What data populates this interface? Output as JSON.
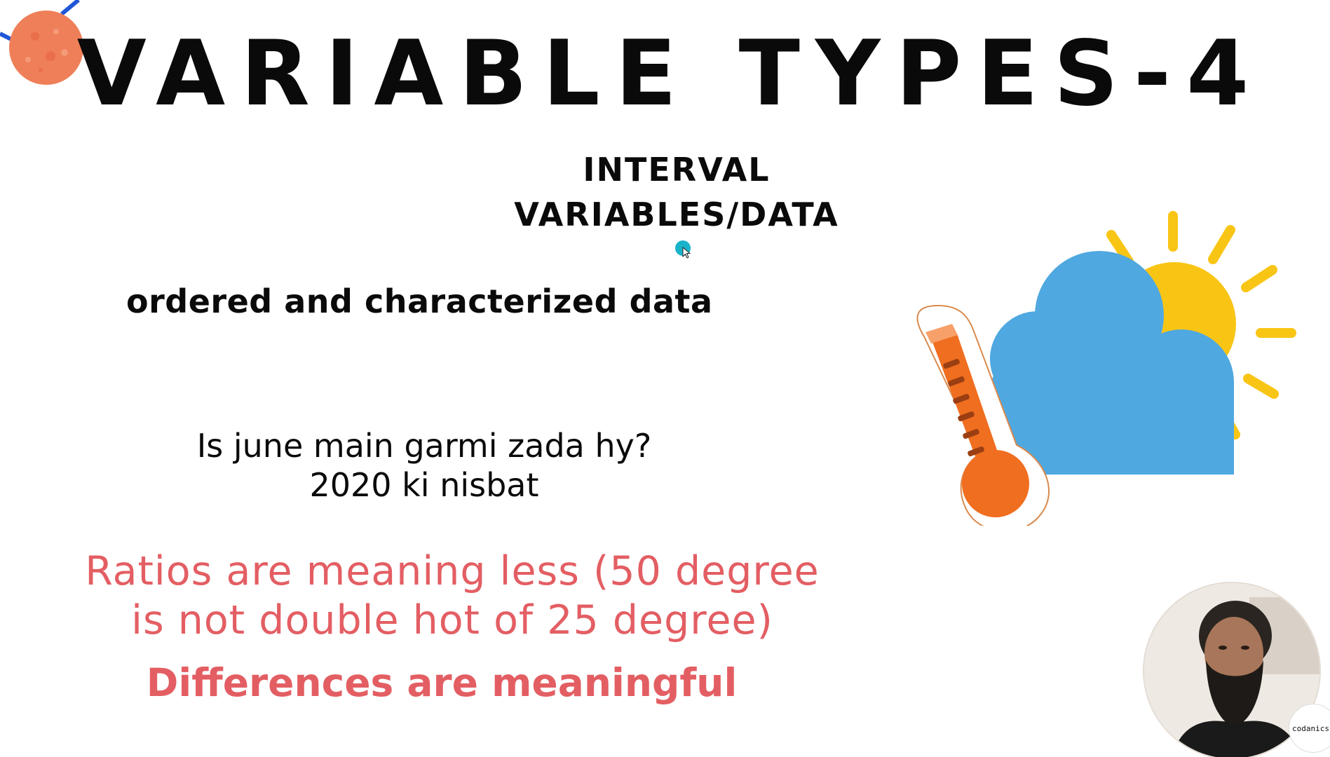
{
  "slide": {
    "title": "VARIABLE TYPES-4",
    "subtitle_line1": "INTERVAL",
    "subtitle_line2": "VARIABLES/DATA",
    "description": "ordered and characterized data",
    "question_line1": "Is june main garmi zada hy?",
    "question_line2": "2020 ki nisbat",
    "ratio_line1": "Ratios are meaning less (50 degree",
    "ratio_line2": "is not double hot of 25 degree)",
    "differences": "Differences are meaningful"
  },
  "webcam": {
    "logo_text": "codanics"
  },
  "icons": {
    "planet": "planet-icon",
    "weather": "weather-thermometer-icon",
    "cursor": "mouse-cursor-icon"
  },
  "colors": {
    "accent_red": "#e35e63",
    "sun_yellow": "#f9c515",
    "cloud_blue": "#4fa8e0",
    "thermo_orange": "#f06e1f",
    "planet_orange": "#ee7f58",
    "cursor_cyan": "#18b3c8"
  }
}
